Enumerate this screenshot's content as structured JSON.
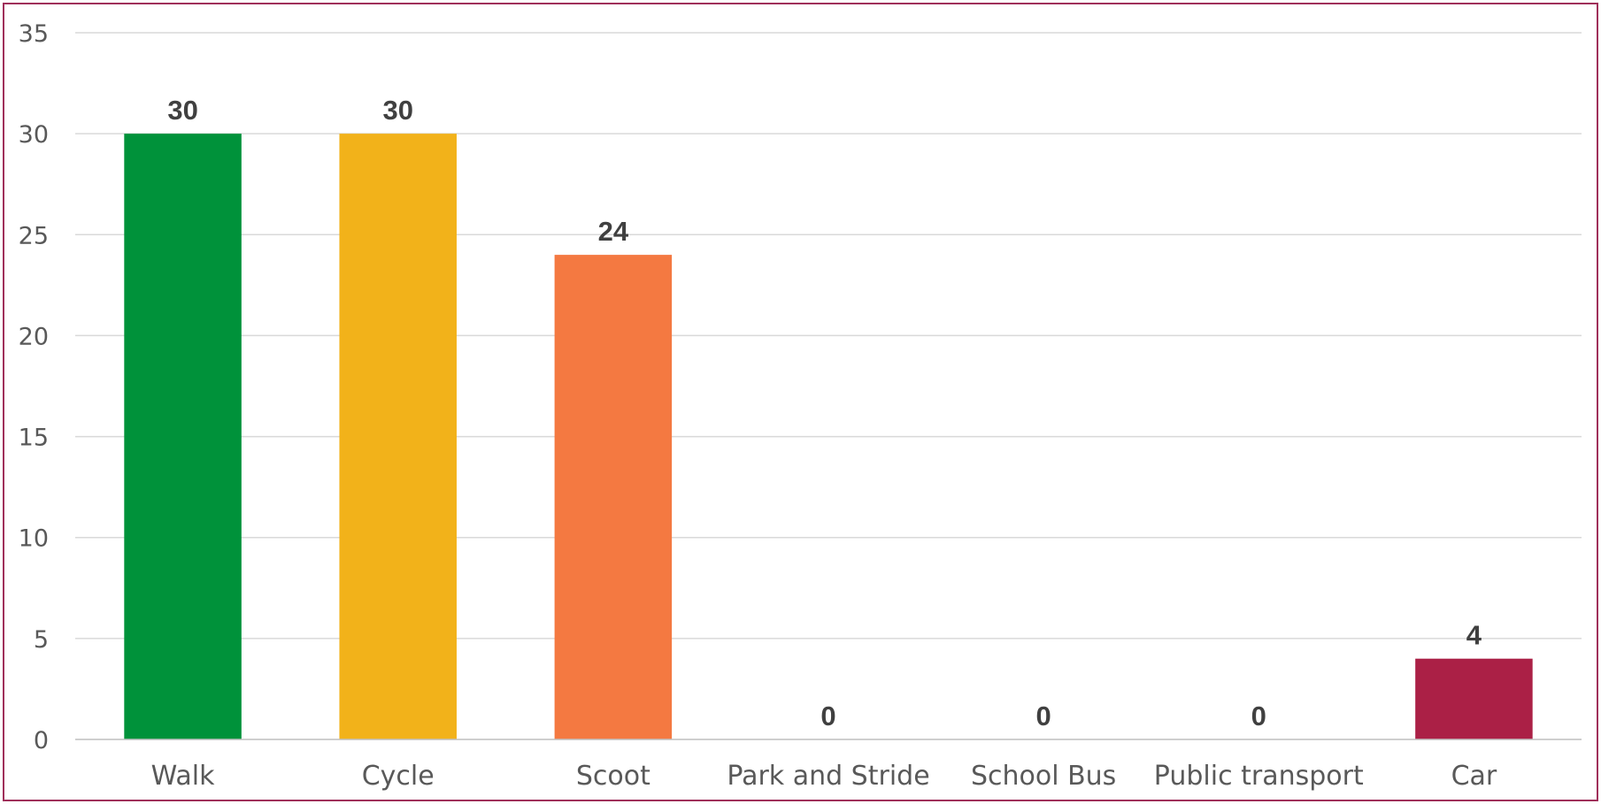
{
  "chart_data": {
    "type": "bar",
    "title": "",
    "xlabel": "",
    "ylabel": "",
    "categories": [
      "Walk",
      "Cycle",
      "Scoot",
      "Park and Stride",
      "School Bus",
      "Public transport",
      "Car"
    ],
    "values": [
      30,
      30,
      24,
      0,
      0,
      0,
      4
    ],
    "data_labels": [
      "30",
      "30",
      "24",
      "0",
      "0",
      "0",
      "4"
    ],
    "colors": [
      "#00923a",
      "#f2b21a",
      "#f47941",
      "#00923a",
      "#00923a",
      "#00923a",
      "#ab2046"
    ],
    "ylim": [
      0,
      35
    ],
    "yticks": [
      0,
      5,
      10,
      15,
      20,
      25,
      30,
      35
    ],
    "ytick_labels": [
      "0",
      "5",
      "10",
      "15",
      "20",
      "25",
      "30",
      "35"
    ],
    "grid": true,
    "legend": "none",
    "frame_color": "#a0305a"
  }
}
